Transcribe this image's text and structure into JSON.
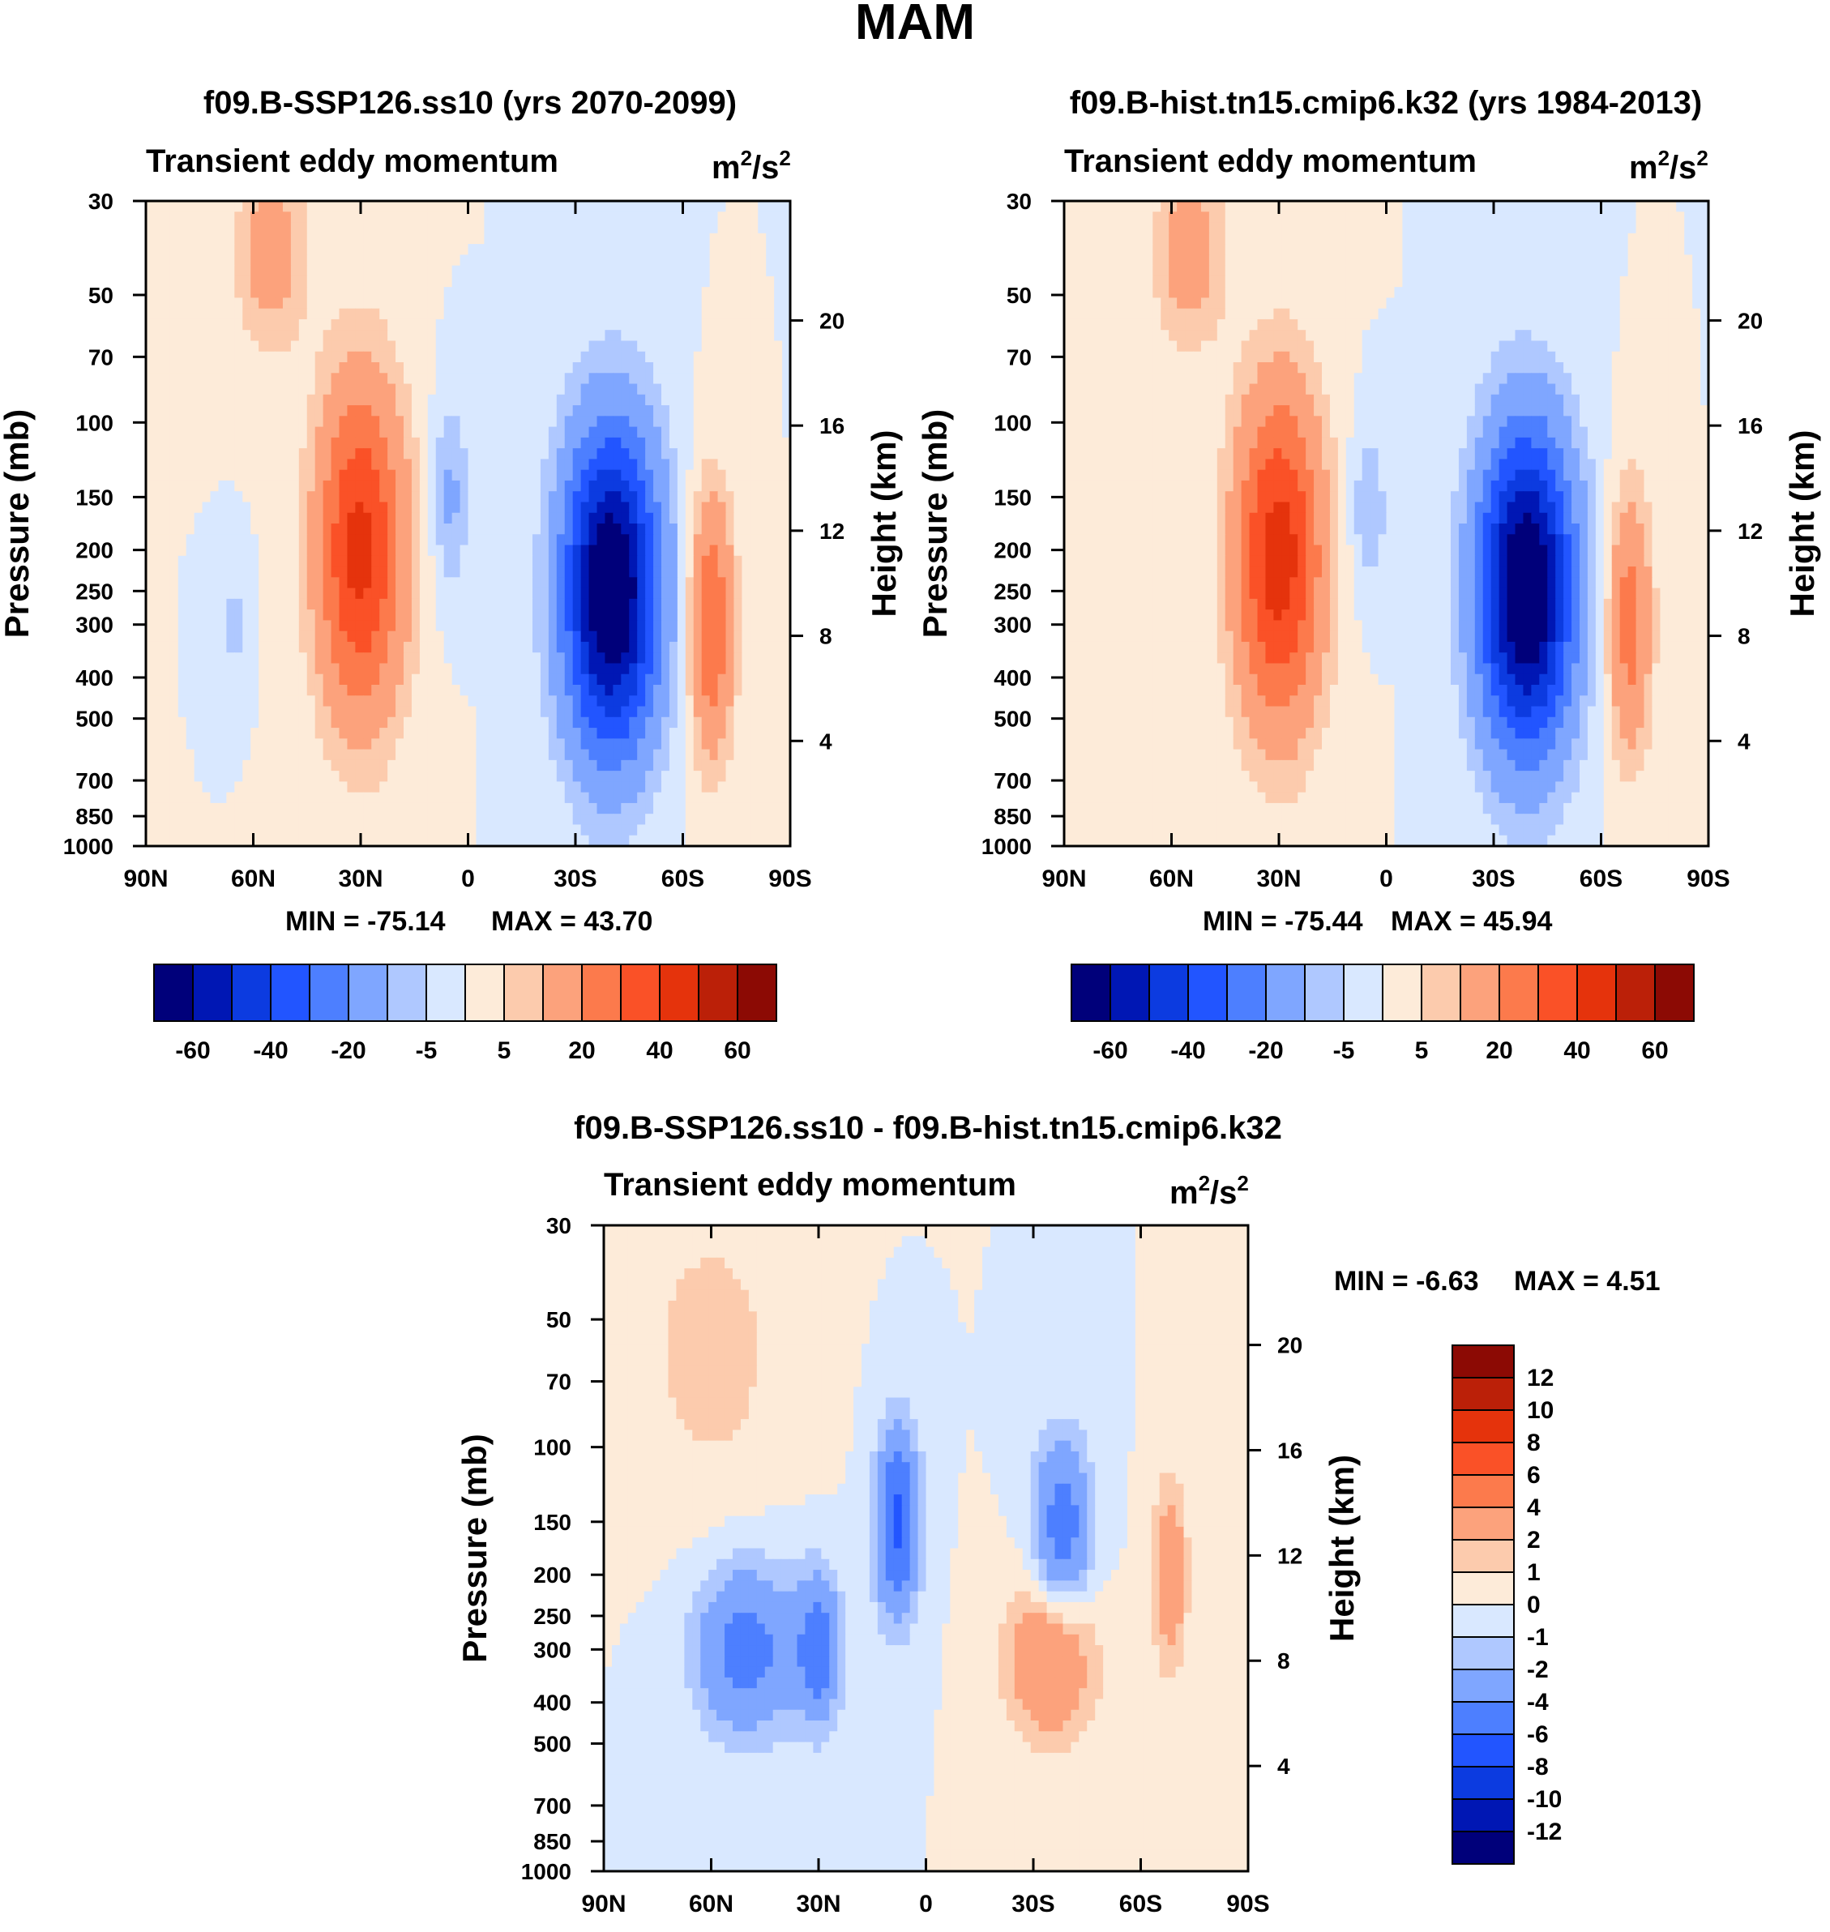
{
  "figure_title": "MAM",
  "colors": {
    "main_scale": [
      "#00007a",
      "#0017b4",
      "#0c3be0",
      "#2255ff",
      "#4d7fff",
      "#7fa6ff",
      "#afc8ff",
      "#d9e8ff",
      "#fdebd9",
      "#fccbad",
      "#fca27c",
      "#fc7a4c",
      "#fa5127",
      "#e5330c",
      "#bb2008",
      "#8c0a04"
    ],
    "diff_scale": [
      "#00007a",
      "#0017b4",
      "#0c3be0",
      "#2255ff",
      "#4d7fff",
      "#7fa6ff",
      "#afc8ff",
      "#d9e8ff",
      "#fdebd9",
      "#fccbad",
      "#fca27c",
      "#fc7a4c",
      "#fa5127",
      "#e5330c",
      "#bb2008",
      "#8c0a04"
    ]
  },
  "chart_data": [
    {
      "type": "heatmap",
      "title": "f09.B-SSP126.ss10 (yrs 2070-2099)",
      "left_subtitle": "Transient eddy momentum",
      "units": "m2/s2",
      "xlabel": "",
      "ylabel": "Pressure (mb)",
      "ylabel_right": "Height (km)",
      "xticks": [
        "90N",
        "60N",
        "30N",
        "0",
        "30S",
        "60S",
        "90S"
      ],
      "xlat": [
        90,
        60,
        30,
        0,
        -30,
        -60,
        -90
      ],
      "yticks": [
        "30",
        "50",
        "70",
        "100",
        "150",
        "200",
        "250",
        "300",
        "400",
        "500",
        "700",
        "850",
        "1000"
      ],
      "ypress": [
        30,
        50,
        70,
        100,
        150,
        200,
        250,
        300,
        400,
        500,
        700,
        850,
        1000
      ],
      "right_ticks": [
        "20",
        "16",
        "12",
        "8",
        "4"
      ],
      "right_km": [
        20,
        16,
        12,
        8,
        4
      ],
      "min_label": "MIN = -75.14",
      "max_label": "MAX =  43.70",
      "min": -75.14,
      "max": 43.7,
      "features": [
        {
          "lat": 30,
          "p": 200,
          "amp": 43.7,
          "width_lat": 12,
          "width_p": 0.9
        },
        {
          "lat": -40,
          "p": 250,
          "amp": -75.14,
          "width_lat": 13,
          "width_p": 0.85
        },
        {
          "lat": -68,
          "p": 300,
          "amp": 30,
          "width_lat": 6,
          "width_p": 0.7
        },
        {
          "lat": 55,
          "p": 40,
          "amp": 15,
          "width_lat": 10,
          "width_p": 0.5
        },
        {
          "lat": 5,
          "p": 150,
          "amp": -12,
          "width_lat": 5,
          "width_p": 0.5
        },
        {
          "lat": 65,
          "p": 300,
          "amp": -7,
          "width_lat": 4,
          "width_p": 0.3
        }
      ]
    },
    {
      "type": "heatmap",
      "title": "f09.B-hist.tn15.cmip6.k32 (yrs 1984-2013)",
      "left_subtitle": "Transient eddy momentum",
      "units": "m2/s2",
      "xlabel": "",
      "ylabel": "Pressure (mb)",
      "ylabel_right": "Height (km)",
      "xticks": [
        "90N",
        "60N",
        "30N",
        "0",
        "30S",
        "60S",
        "90S"
      ],
      "xlat": [
        90,
        60,
        30,
        0,
        -30,
        -60,
        -90
      ],
      "yticks": [
        "30",
        "50",
        "70",
        "100",
        "150",
        "200",
        "250",
        "300",
        "400",
        "500",
        "700",
        "850",
        "1000"
      ],
      "ypress": [
        30,
        50,
        70,
        100,
        150,
        200,
        250,
        300,
        400,
        500,
        700,
        850,
        1000
      ],
      "right_ticks": [
        "20",
        "16",
        "12",
        "8",
        "4"
      ],
      "right_km": [
        20,
        16,
        12,
        8,
        4
      ],
      "min_label": "MIN = -75.44",
      "max_label": "MAX =  45.94",
      "min": -75.44,
      "max": 45.94,
      "features": [
        {
          "lat": 30,
          "p": 210,
          "amp": 45.94,
          "width_lat": 12,
          "width_p": 0.9
        },
        {
          "lat": -39,
          "p": 250,
          "amp": -75.44,
          "width_lat": 13,
          "width_p": 0.85
        },
        {
          "lat": -68,
          "p": 300,
          "amp": 25,
          "width_lat": 6,
          "width_p": 0.7
        },
        {
          "lat": 55,
          "p": 40,
          "amp": 15,
          "width_lat": 10,
          "width_p": 0.5
        },
        {
          "lat": 5,
          "p": 160,
          "amp": -10,
          "width_lat": 5,
          "width_p": 0.45
        }
      ]
    },
    {
      "type": "heatmap",
      "title": "f09.B-SSP126.ss10 - f09.B-hist.tn15.cmip6.k32",
      "left_subtitle": "Transient eddy momentum",
      "units": "m2/s2",
      "xlabel": "",
      "ylabel": "Pressure (mb)",
      "ylabel_right": "Height (km)",
      "xticks": [
        "90N",
        "60N",
        "30N",
        "0",
        "30S",
        "60S",
        "90S"
      ],
      "xlat": [
        90,
        60,
        30,
        0,
        -30,
        -60,
        -90
      ],
      "yticks": [
        "30",
        "50",
        "70",
        "100",
        "150",
        "200",
        "250",
        "300",
        "400",
        "500",
        "700",
        "850",
        "1000"
      ],
      "ypress": [
        30,
        50,
        70,
        100,
        150,
        200,
        250,
        300,
        400,
        500,
        700,
        850,
        1000
      ],
      "right_ticks": [
        "20",
        "16",
        "12",
        "8",
        "4"
      ],
      "right_km": [
        20,
        16,
        12,
        8,
        4
      ],
      "min_label": "MIN =  -6.63",
      "max_label": "MAX =   4.51",
      "min": -6.63,
      "max": 4.51,
      "features": [
        {
          "lat": 8,
          "p": 150,
          "amp": -6.63,
          "width_lat": 6,
          "width_p": 0.5
        },
        {
          "lat": -38,
          "p": 160,
          "amp": -5.5,
          "width_lat": 8,
          "width_p": 0.5
        },
        {
          "lat": -35,
          "p": 310,
          "amp": 4.51,
          "width_lat": 12,
          "width_p": 0.45
        },
        {
          "lat": -68,
          "p": 200,
          "amp": 3.5,
          "width_lat": 5,
          "width_p": 0.5
        },
        {
          "lat": 50,
          "p": 300,
          "amp": -5,
          "width_lat": 14,
          "width_p": 0.45
        },
        {
          "lat": 30,
          "p": 300,
          "amp": -5,
          "width_lat": 6,
          "width_p": 0.4
        },
        {
          "lat": 60,
          "p": 60,
          "amp": 1.5,
          "width_lat": 20,
          "width_p": 0.8
        }
      ]
    }
  ],
  "colorbar_main": {
    "labels": [
      "-60",
      "-40",
      "-20",
      "-5",
      "5",
      "20",
      "40",
      "60"
    ]
  },
  "colorbar_diff": {
    "labels": [
      "12",
      "10",
      "8",
      "6",
      "4",
      "2",
      "1",
      "0",
      "-1",
      "-2",
      "-4",
      "-6",
      "-8",
      "-10",
      "-12"
    ]
  }
}
